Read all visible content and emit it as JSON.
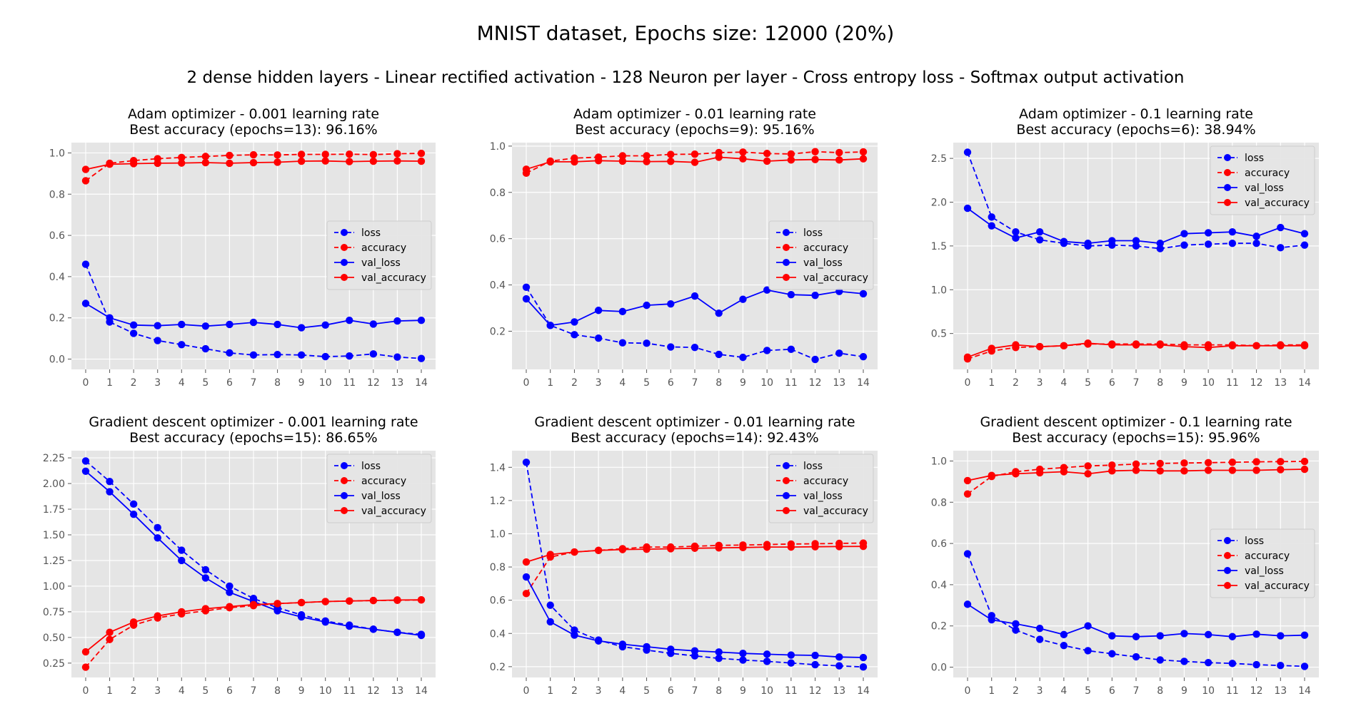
{
  "figure": {
    "title": "MNIST dataset, Epochs size: 12000 (20%)",
    "subtitle": "2 dense hidden layers - Linear rectified activation - 128 Neuron per layer - Cross entropy loss - Softmax output activation"
  },
  "colors": {
    "loss": "#0000ff",
    "accuracy": "#ff0000",
    "panel_bg": "#e5e5e5",
    "grid": "#ffffff"
  },
  "legend_labels": [
    "loss",
    "accuracy",
    "val_loss",
    "val_accuracy"
  ],
  "chart_data": [
    {
      "type": "line",
      "title": "Adam optimizer - 0.001 learning rate",
      "subtitle": "Best accuracy (epochs=13): 96.16%",
      "x": [
        0,
        1,
        2,
        3,
        4,
        5,
        6,
        7,
        8,
        9,
        10,
        11,
        12,
        13,
        14
      ],
      "ylim": [
        -0.05,
        1.05
      ],
      "yticks": [
        "0.0",
        "0.2",
        "0.4",
        "0.6",
        "0.8",
        "1.0"
      ],
      "legend": "center-right",
      "grid": true,
      "series": [
        {
          "name": "loss",
          "style": "dashed",
          "color": "#0000ff",
          "values": [
            0.46,
            0.18,
            0.125,
            0.09,
            0.07,
            0.05,
            0.03,
            0.02,
            0.022,
            0.02,
            0.012,
            0.015,
            0.025,
            0.01,
            0.003
          ]
        },
        {
          "name": "accuracy",
          "style": "dashed",
          "color": "#ff0000",
          "values": [
            0.865,
            0.95,
            0.963,
            0.972,
            0.978,
            0.983,
            0.988,
            0.991,
            0.99,
            0.993,
            0.993,
            0.994,
            0.992,
            0.996,
            0.998
          ]
        },
        {
          "name": "val_loss",
          "style": "solid",
          "color": "#0000ff",
          "values": [
            0.27,
            0.2,
            0.165,
            0.162,
            0.168,
            0.16,
            0.168,
            0.178,
            0.168,
            0.152,
            0.165,
            0.188,
            0.17,
            0.185,
            0.188
          ]
        },
        {
          "name": "val_accuracy",
          "style": "solid",
          "color": "#ff0000",
          "values": [
            0.92,
            0.945,
            0.948,
            0.95,
            0.951,
            0.953,
            0.95,
            0.953,
            0.955,
            0.96,
            0.961,
            0.958,
            0.96,
            0.961,
            0.96
          ]
        }
      ]
    },
    {
      "type": "line",
      "title": "Adam optimizer - 0.01 learning rate",
      "subtitle": "Best accuracy (epochs=9): 95.16%",
      "x": [
        0,
        1,
        2,
        3,
        4,
        5,
        6,
        7,
        8,
        9,
        10,
        11,
        12,
        13,
        14
      ],
      "ylim": [
        0.035,
        1.015
      ],
      "yticks": [
        "0.2",
        "0.4",
        "0.6",
        "0.8",
        "1.0"
      ],
      "legend": "center-right",
      "grid": true,
      "series": [
        {
          "name": "loss",
          "style": "dashed",
          "color": "#0000ff",
          "values": [
            0.39,
            0.225,
            0.185,
            0.17,
            0.15,
            0.148,
            0.132,
            0.13,
            0.1,
            0.087,
            0.117,
            0.122,
            0.078,
            0.105,
            0.09
          ]
        },
        {
          "name": "accuracy",
          "style": "dashed",
          "color": "#ff0000",
          "values": [
            0.883,
            0.935,
            0.948,
            0.952,
            0.958,
            0.958,
            0.964,
            0.965,
            0.972,
            0.974,
            0.968,
            0.966,
            0.976,
            0.972,
            0.975
          ]
        },
        {
          "name": "val_loss",
          "style": "solid",
          "color": "#0000ff",
          "values": [
            0.34,
            0.225,
            0.24,
            0.29,
            0.285,
            0.312,
            0.318,
            0.352,
            0.278,
            0.338,
            0.378,
            0.358,
            0.355,
            0.372,
            0.362
          ]
        },
        {
          "name": "val_accuracy",
          "style": "solid",
          "color": "#ff0000",
          "values": [
            0.9,
            0.932,
            0.932,
            0.937,
            0.935,
            0.933,
            0.934,
            0.93,
            0.952,
            0.945,
            0.935,
            0.94,
            0.942,
            0.94,
            0.945
          ]
        }
      ]
    },
    {
      "type": "line",
      "title": "Adam optimizer - 0.1 learning rate",
      "subtitle": "Best accuracy (epochs=6): 38.94%",
      "x": [
        0,
        1,
        2,
        3,
        4,
        5,
        6,
        7,
        8,
        9,
        10,
        11,
        12,
        13,
        14
      ],
      "ylim": [
        0.09,
        2.68
      ],
      "yticks": [
        "0.5",
        "1.0",
        "1.5",
        "2.0",
        "2.5"
      ],
      "legend": "top-right",
      "grid": true,
      "series": [
        {
          "name": "loss",
          "style": "dashed",
          "color": "#0000ff",
          "values": [
            2.57,
            1.83,
            1.66,
            1.57,
            1.53,
            1.5,
            1.51,
            1.5,
            1.47,
            1.51,
            1.52,
            1.53,
            1.53,
            1.48,
            1.51
          ]
        },
        {
          "name": "accuracy",
          "style": "dashed",
          "color": "#ff0000",
          "values": [
            0.21,
            0.3,
            0.34,
            0.35,
            0.36,
            0.38,
            0.38,
            0.38,
            0.38,
            0.37,
            0.37,
            0.37,
            0.36,
            0.37,
            0.37
          ]
        },
        {
          "name": "val_loss",
          "style": "solid",
          "color": "#0000ff",
          "values": [
            1.93,
            1.73,
            1.59,
            1.66,
            1.55,
            1.53,
            1.56,
            1.56,
            1.53,
            1.64,
            1.65,
            1.66,
            1.61,
            1.71,
            1.64
          ]
        },
        {
          "name": "val_accuracy",
          "style": "solid",
          "color": "#ff0000",
          "values": [
            0.23,
            0.33,
            0.37,
            0.35,
            0.36,
            0.39,
            0.37,
            0.37,
            0.37,
            0.35,
            0.34,
            0.36,
            0.36,
            0.36,
            0.36
          ]
        }
      ]
    },
    {
      "type": "line",
      "title": "Gradient descent optimizer - 0.001 learning rate",
      "subtitle": "Best accuracy (epochs=15): 86.65%",
      "x": [
        0,
        1,
        2,
        3,
        4,
        5,
        6,
        7,
        8,
        9,
        10,
        11,
        12,
        13,
        14
      ],
      "ylim": [
        0.11,
        2.32
      ],
      "yticks": [
        "0.25",
        "0.50",
        "0.75",
        "1.00",
        "1.25",
        "1.50",
        "1.75",
        "2.00",
        "2.25"
      ],
      "legend": "top-right",
      "grid": true,
      "series": [
        {
          "name": "loss",
          "style": "dashed",
          "color": "#0000ff",
          "values": [
            2.22,
            2.02,
            1.8,
            1.57,
            1.35,
            1.16,
            1.0,
            0.88,
            0.79,
            0.72,
            0.66,
            0.62,
            0.58,
            0.55,
            0.53
          ]
        },
        {
          "name": "accuracy",
          "style": "dashed",
          "color": "#ff0000",
          "values": [
            0.21,
            0.48,
            0.62,
            0.69,
            0.73,
            0.76,
            0.79,
            0.81,
            0.83,
            0.84,
            0.85,
            0.855,
            0.86,
            0.862,
            0.866
          ]
        },
        {
          "name": "val_loss",
          "style": "solid",
          "color": "#0000ff",
          "values": [
            2.12,
            1.92,
            1.7,
            1.47,
            1.25,
            1.08,
            0.94,
            0.85,
            0.76,
            0.7,
            0.65,
            0.61,
            0.58,
            0.55,
            0.52
          ]
        },
        {
          "name": "val_accuracy",
          "style": "solid",
          "color": "#ff0000",
          "values": [
            0.36,
            0.55,
            0.65,
            0.71,
            0.75,
            0.78,
            0.8,
            0.82,
            0.83,
            0.84,
            0.85,
            0.855,
            0.86,
            0.865,
            0.866
          ]
        }
      ]
    },
    {
      "type": "line",
      "title": "Gradient descent optimizer - 0.01 learning rate",
      "subtitle": "Best accuracy (epochs=14): 92.43%",
      "x": [
        0,
        1,
        2,
        3,
        4,
        5,
        6,
        7,
        8,
        9,
        10,
        11,
        12,
        13,
        14
      ],
      "ylim": [
        0.135,
        1.5
      ],
      "yticks": [
        "0.2",
        "0.4",
        "0.6",
        "0.8",
        "1.0",
        "1.2",
        "1.4"
      ],
      "legend": "top-right",
      "grid": true,
      "series": [
        {
          "name": "loss",
          "style": "dashed",
          "color": "#0000ff",
          "values": [
            1.43,
            0.57,
            0.42,
            0.36,
            0.32,
            0.3,
            0.28,
            0.265,
            0.25,
            0.24,
            0.232,
            0.222,
            0.212,
            0.205,
            0.198
          ]
        },
        {
          "name": "accuracy",
          "style": "dashed",
          "color": "#ff0000",
          "values": [
            0.64,
            0.86,
            0.89,
            0.9,
            0.91,
            0.92,
            0.92,
            0.925,
            0.93,
            0.932,
            0.935,
            0.938,
            0.94,
            0.942,
            0.944
          ]
        },
        {
          "name": "val_loss",
          "style": "solid",
          "color": "#0000ff",
          "values": [
            0.74,
            0.47,
            0.39,
            0.355,
            0.335,
            0.32,
            0.305,
            0.295,
            0.288,
            0.28,
            0.275,
            0.27,
            0.268,
            0.258,
            0.255
          ]
        },
        {
          "name": "val_accuracy",
          "style": "solid",
          "color": "#ff0000",
          "values": [
            0.83,
            0.875,
            0.89,
            0.9,
            0.905,
            0.907,
            0.91,
            0.913,
            0.915,
            0.917,
            0.92,
            0.92,
            0.922,
            0.923,
            0.924
          ]
        }
      ]
    },
    {
      "type": "line",
      "title": "Gradient descent optimizer - 0.1 learning rate",
      "subtitle": "Best accuracy (epochs=15): 95.96%",
      "x": [
        0,
        1,
        2,
        3,
        4,
        5,
        6,
        7,
        8,
        9,
        10,
        11,
        12,
        13,
        14
      ],
      "ylim": [
        -0.05,
        1.05
      ],
      "yticks": [
        "0.0",
        "0.2",
        "0.4",
        "0.6",
        "0.8",
        "1.0"
      ],
      "legend": "center-right",
      "grid": true,
      "series": [
        {
          "name": "loss",
          "style": "dashed",
          "color": "#0000ff",
          "values": [
            0.55,
            0.25,
            0.18,
            0.135,
            0.105,
            0.08,
            0.065,
            0.05,
            0.035,
            0.028,
            0.022,
            0.018,
            0.012,
            0.008,
            0.004
          ]
        },
        {
          "name": "accuracy",
          "style": "dashed",
          "color": "#ff0000",
          "values": [
            0.84,
            0.925,
            0.948,
            0.96,
            0.968,
            0.976,
            0.98,
            0.985,
            0.988,
            0.99,
            0.992,
            0.994,
            0.996,
            0.997,
            0.998
          ]
        },
        {
          "name": "val_loss",
          "style": "solid",
          "color": "#0000ff",
          "values": [
            0.305,
            0.23,
            0.21,
            0.188,
            0.158,
            0.2,
            0.152,
            0.148,
            0.152,
            0.163,
            0.158,
            0.148,
            0.16,
            0.152,
            0.155
          ]
        },
        {
          "name": "val_accuracy",
          "style": "solid",
          "color": "#ff0000",
          "values": [
            0.905,
            0.93,
            0.938,
            0.943,
            0.948,
            0.938,
            0.952,
            0.955,
            0.952,
            0.952,
            0.955,
            0.955,
            0.955,
            0.958,
            0.96
          ]
        }
      ]
    }
  ]
}
